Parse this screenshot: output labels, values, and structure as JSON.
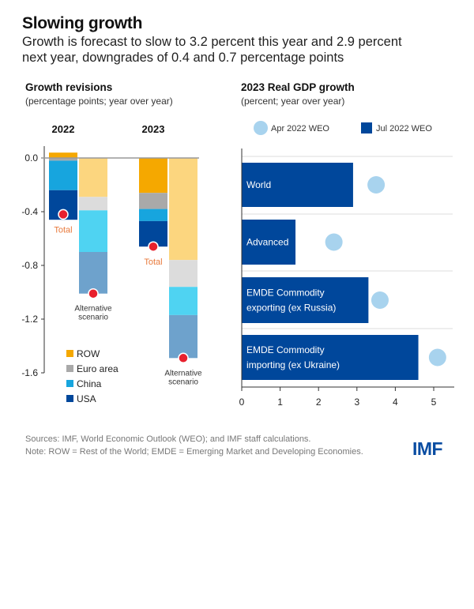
{
  "title": "Slowing growth",
  "subtitle_lines": [
    "Growth is forecast to slow to 3.2 percent this year and 2.9 percent",
    "next year, downgrades of 0.4 and 0.7 percentage points"
  ],
  "footer": {
    "sources": "Sources: IMF, World Economic Outlook (WEO); and IMF staff calculations.",
    "note": "Note: ROW = Rest of the World; EMDE = Emerging Market and Developing Economies.",
    "logo": "IMF"
  },
  "chart_data": [
    {
      "type": "bar",
      "stacked": true,
      "title": "Growth revisions",
      "subtitle": "(percentage points; year over year)",
      "ylim": [
        -1.6,
        0.05
      ],
      "yticks": [
        "0.0",
        "-0.4",
        "-0.8",
        "-1.2",
        "-1.6"
      ],
      "ytick_values": [
        0,
        -0.4,
        -0.8,
        -1.2,
        -1.6
      ],
      "groups": [
        "2022",
        "2023"
      ],
      "components": [
        "ROW",
        "Euro area",
        "China",
        "USA"
      ],
      "legend_placement": "bottom-left",
      "colors": {
        "ROW": [
          "#f5a800",
          "#fcd67f"
        ],
        "Euro area": [
          "#a9a9a9",
          "#dcdcdc"
        ],
        "China": [
          "#17a5de",
          "#4fd3f2"
        ],
        "USA": [
          "#00479b",
          "#6ea2cc"
        ]
      },
      "bars": [
        {
          "group": "2022",
          "scenario": "baseline",
          "values": [
            0.04,
            -0.02,
            -0.22,
            -0.22
          ],
          "total": -0.42,
          "total_label": "Total"
        },
        {
          "group": "2022",
          "scenario": "alternative",
          "values": [
            -0.29,
            -0.1,
            -0.31,
            -0.31
          ],
          "total": -1.01,
          "total_label": [
            "Alternative",
            "scenario"
          ]
        },
        {
          "group": "2023",
          "scenario": "baseline",
          "values": [
            -0.26,
            -0.12,
            -0.09,
            -0.19
          ],
          "total": -0.66,
          "total_label": "Total"
        },
        {
          "group": "2023",
          "scenario": "alternative",
          "values": [
            -0.76,
            -0.2,
            -0.21,
            -0.32
          ],
          "total": -1.49,
          "total_label": [
            "Alternative",
            "scenario"
          ]
        }
      ],
      "total_marker_color": "#e8202d",
      "total_label_color": "#e87a3c"
    },
    {
      "type": "bar",
      "orientation": "horizontal",
      "title": "2023 Real GDP growth",
      "subtitle": "(percent; year over year)",
      "xlim": [
        0,
        5.5
      ],
      "xticks": [
        "0",
        "1",
        "2",
        "3",
        "4",
        "5"
      ],
      "series": [
        {
          "name": "Apr 2022 WEO",
          "marker": "circle",
          "color": "#a8d3ee",
          "values": [
            3.5,
            2.4,
            3.6,
            5.1
          ]
        },
        {
          "name": "Jul 2022 WEO",
          "marker": "bar",
          "color": "#00479b",
          "values": [
            2.9,
            1.4,
            3.3,
            4.6
          ]
        }
      ],
      "categories": [
        [
          "World"
        ],
        [
          "Advanced"
        ],
        [
          "EMDE Commodity",
          "exporting (ex Russia)"
        ],
        [
          "EMDE Commodity",
          "importing (ex Ukraine)"
        ]
      ],
      "legend_placement": "top"
    }
  ]
}
